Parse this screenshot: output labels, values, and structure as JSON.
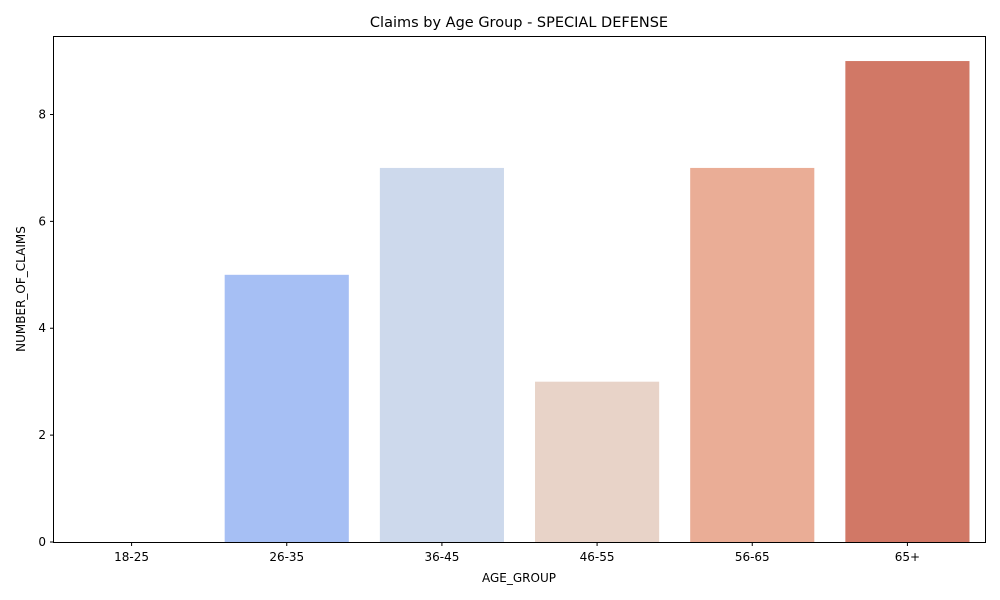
{
  "chart_data": {
    "type": "bar",
    "title": "Claims by Age Group - SPECIAL DEFENSE",
    "xlabel": "AGE_GROUP",
    "ylabel": "NUMBER_OF_CLAIMS",
    "categories": [
      "18-25",
      "26-35",
      "36-45",
      "46-55",
      "56-65",
      "65+"
    ],
    "values": [
      0,
      5,
      7,
      3,
      7,
      9
    ],
    "colors": [
      "#3b4cc0",
      "#a6bff4",
      "#cdd9ec",
      "#e8d3c8",
      "#eaad96",
      "#d17866"
    ],
    "ylim": [
      0,
      9.45
    ],
    "yticks": [
      0,
      2,
      4,
      6,
      8
    ],
    "grid": false,
    "legend": "none"
  }
}
